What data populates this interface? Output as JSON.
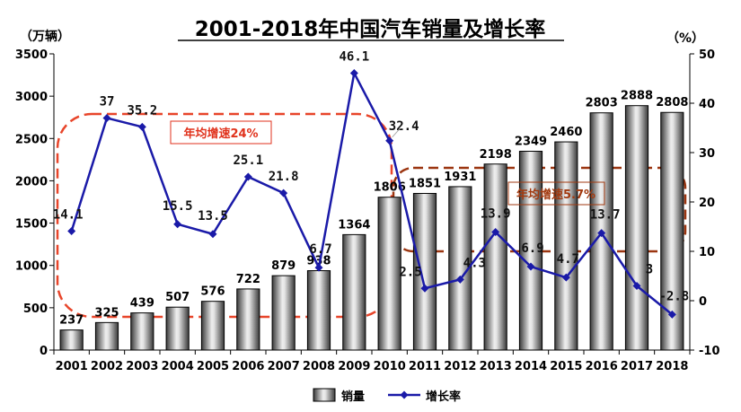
{
  "chart_data": {
    "type": "bar",
    "title": "2001-2018年中国汽车销量及增长率",
    "y_left_unit": "（万辆）",
    "y_right_unit": "（%）",
    "categories": [
      "2001",
      "2002",
      "2003",
      "2004",
      "2005",
      "2006",
      "2007",
      "2008",
      "2009",
      "2010",
      "2011",
      "2012",
      "2013",
      "2014",
      "2015",
      "2016",
      "2017",
      "2018"
    ],
    "ylim_left": [
      0,
      3500
    ],
    "ylim_right": [
      -10,
      50
    ],
    "yticks_left": [
      "0",
      "500",
      "1000",
      "1500",
      "2000",
      "2500",
      "3000",
      "3500"
    ],
    "yticks_right": [
      "-10",
      "0",
      "10",
      "20",
      "30",
      "40",
      "50"
    ],
    "series": [
      {
        "name": "销量",
        "kind": "bar",
        "axis": "left",
        "values": [
          237,
          325,
          439,
          507,
          576,
          722,
          879,
          938,
          1364,
          1806,
          1851,
          1931,
          2198,
          2349,
          2460,
          2803,
          2888,
          2808
        ],
        "labels": [
          "237",
          "325",
          "439",
          "507",
          "576",
          "722",
          "879",
          "938",
          "1364",
          "1806",
          "1851",
          "1931",
          "2198",
          "2349",
          "2460",
          "2803",
          "2888",
          "2808"
        ]
      },
      {
        "name": "增长率",
        "kind": "line",
        "axis": "right",
        "color": "#1a1aa8",
        "values": [
          14.1,
          37,
          35.2,
          15.5,
          13.5,
          25.1,
          21.8,
          6.7,
          46.1,
          32.4,
          2.5,
          4.3,
          13.9,
          6.9,
          4.7,
          13.7,
          3,
          -2.8
        ],
        "labels": [
          "14.1",
          "37",
          "35.2",
          "15.5",
          "13.5",
          "25.1",
          "21.8",
          "6.7",
          "46.1",
          "32.4",
          "2.5",
          "4.3",
          "13.9",
          "6.9",
          "4.7",
          "13.7",
          "3",
          "-2.8"
        ]
      }
    ],
    "annotations": [
      {
        "text": "年均增速24%",
        "color": "#e0321c"
      },
      {
        "text": "年均增速5.7%",
        "color": "#a23a10"
      }
    ],
    "grid": false,
    "legend_position": "bottom"
  }
}
